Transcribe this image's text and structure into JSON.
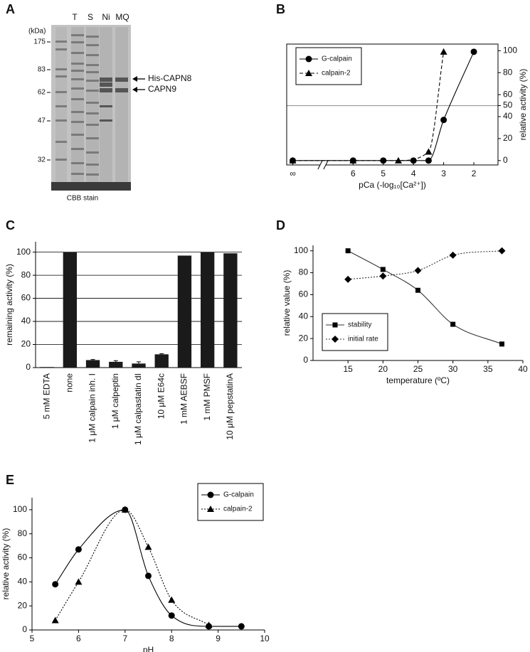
{
  "gel": {
    "panel": "A",
    "unit": "(kDa)",
    "lanes": [
      "T",
      "S",
      "Ni",
      "MQ"
    ],
    "markers": [
      175,
      83,
      62,
      47,
      32
    ],
    "bands": [
      "His-CAPN8",
      "CAPN9"
    ],
    "stain": "CBB stain"
  },
  "chart_data": [
    {
      "panel": "B",
      "type": "line",
      "x_label": "pCa (-log₁₀[Ca²⁺])",
      "y_label": "relative activity (%)",
      "y_axis_side": "right",
      "xlim": [
        8.2,
        1.2
      ],
      "xticks": [
        {
          "value": 8,
          "label": "∞"
        },
        6,
        5,
        4,
        3,
        2
      ],
      "ylim": [
        -4,
        106
      ],
      "yticks": [
        0,
        20,
        40,
        50,
        60,
        80,
        100
      ],
      "reference_line": 50,
      "axis_break": true,
      "frame": true,
      "legend": "upper left",
      "smooth": true,
      "series": [
        {
          "name": "G-calpain",
          "color": "#000000",
          "marker": "circle",
          "line_style": "solid",
          "x": [
            8,
            6,
            5,
            4,
            3.5,
            3,
            2
          ],
          "values": [
            0,
            0,
            0,
            0,
            0,
            37,
            99
          ]
        },
        {
          "name": "calpain-2",
          "color": "#000000",
          "marker": "triangle",
          "line_style": "dashed",
          "x": [
            8,
            6,
            4.5,
            3.5,
            3
          ],
          "values": [
            0,
            0,
            0,
            8,
            99
          ]
        }
      ]
    },
    {
      "panel": "C",
      "type": "bar",
      "y_label": "remaining activity (%)",
      "categories": [
        "5 mM EDTA",
        "none",
        "1 μM calpain inh. I",
        "1 μM calpeptin",
        "1 μM calpastatin dI",
        "10 μM E64c",
        "1 mM AEBSF",
        "1 mM PMSF",
        "10 μM pepstatinA"
      ],
      "values": [
        0.5,
        100,
        6.5,
        5,
        3.5,
        11.5,
        97,
        100,
        99
      ],
      "errors": [
        0,
        0,
        0.5,
        1,
        1.5,
        0.5,
        0,
        0,
        0
      ],
      "color": "#1a1a1a",
      "ylim": [
        0,
        109
      ],
      "yticks": [
        0,
        20,
        40,
        60,
        80,
        100
      ],
      "grid": true
    },
    {
      "panel": "D",
      "type": "line",
      "x_label": "temperature (ºC)",
      "y_label": "relative value (%)",
      "xlim": [
        10,
        40
      ],
      "xticks": [
        15,
        20,
        25,
        30,
        35,
        40
      ],
      "ylim": [
        0,
        105
      ],
      "yticks": [
        0,
        20,
        40,
        60,
        80,
        100
      ],
      "legend": "lower left",
      "smooth": true,
      "series": [
        {
          "name": "stability",
          "color": "#333333",
          "marker": "square",
          "line_style": "solid",
          "x": [
            15,
            20,
            25,
            30,
            37
          ],
          "values": [
            100,
            83,
            64,
            33,
            15
          ]
        },
        {
          "name": "initial rate",
          "color": "#333333",
          "marker": "diamond",
          "line_style": "dotted",
          "x": [
            15,
            20,
            25,
            30,
            37
          ],
          "values": [
            74,
            77,
            82,
            96,
            100
          ]
        }
      ]
    },
    {
      "panel": "E",
      "type": "line",
      "x_label": "pH",
      "y_label": "relative activity (%)",
      "xlim": [
        5,
        10
      ],
      "xticks": [
        5,
        6,
        7,
        8,
        9,
        10
      ],
      "ylim": [
        0,
        110
      ],
      "yticks": [
        0,
        20,
        40,
        60,
        80,
        100
      ],
      "legend": "upper right",
      "smooth": true,
      "series": [
        {
          "name": "G-calpain",
          "color": "#000000",
          "marker": "circle",
          "line_style": "solid",
          "x": [
            5.5,
            6,
            7,
            7.5,
            8,
            8.8,
            9.5
          ],
          "values": [
            38,
            67,
            100,
            45,
            12,
            3,
            3
          ]
        },
        {
          "name": "calpain-2",
          "color": "#000000",
          "marker": "triangle",
          "line_style": "dotted",
          "x": [
            5.5,
            6,
            7,
            7.5,
            8,
            8.8
          ],
          "values": [
            8,
            40,
            100,
            69,
            25,
            4
          ]
        }
      ]
    }
  ]
}
